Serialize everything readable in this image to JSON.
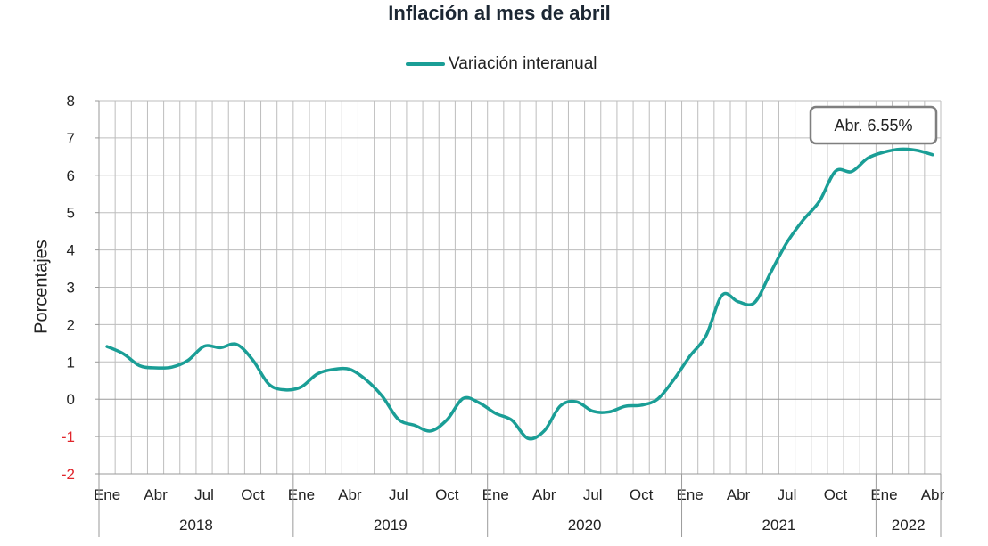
{
  "chart_data": {
    "type": "line",
    "title": "Inflación al mes de abril",
    "ylabel": "Porcentajes",
    "xlabel": "",
    "ylim": [
      -2,
      8
    ],
    "yticks": [
      -2,
      -1,
      0,
      1,
      2,
      3,
      4,
      5,
      6,
      7,
      8
    ],
    "grid": true,
    "legend_position": "top-center",
    "month_labels": [
      "Ene",
      "Abr",
      "Jul",
      "Oct"
    ],
    "years": [
      "2018",
      "2019",
      "2020",
      "2021",
      "2022"
    ],
    "series": [
      {
        "name": "Variación interanual",
        "color": "#1a9e96",
        "x": [
          "2018-01",
          "2018-02",
          "2018-03",
          "2018-04",
          "2018-05",
          "2018-06",
          "2018-07",
          "2018-08",
          "2018-09",
          "2018-10",
          "2018-11",
          "2018-12",
          "2019-01",
          "2019-02",
          "2019-03",
          "2019-04",
          "2019-05",
          "2019-06",
          "2019-07",
          "2019-08",
          "2019-09",
          "2019-10",
          "2019-11",
          "2019-12",
          "2020-01",
          "2020-02",
          "2020-03",
          "2020-04",
          "2020-05",
          "2020-06",
          "2020-07",
          "2020-08",
          "2020-09",
          "2020-10",
          "2020-11",
          "2020-12",
          "2021-01",
          "2021-02",
          "2021-03",
          "2021-04",
          "2021-05",
          "2021-06",
          "2021-07",
          "2021-08",
          "2021-09",
          "2021-10",
          "2021-11",
          "2021-12",
          "2022-01",
          "2022-02",
          "2022-03",
          "2022-04"
        ],
        "values": [
          1.41,
          1.22,
          0.9,
          0.84,
          0.86,
          1.04,
          1.42,
          1.38,
          1.47,
          1.05,
          0.4,
          0.25,
          0.33,
          0.68,
          0.8,
          0.8,
          0.52,
          0.08,
          -0.54,
          -0.7,
          -0.85,
          -0.55,
          0.02,
          -0.1,
          -0.38,
          -0.56,
          -1.05,
          -0.85,
          -0.18,
          -0.07,
          -0.32,
          -0.34,
          -0.19,
          -0.16,
          0.0,
          0.52,
          1.15,
          1.7,
          2.79,
          2.61,
          2.59,
          3.4,
          4.2,
          4.8,
          5.3,
          6.11,
          6.1,
          6.46,
          6.62,
          6.7,
          6.67,
          6.55
        ]
      }
    ],
    "annotation": "Abr. 6.55%",
    "colors": {
      "positive_ticks": "#222222",
      "negative_ticks": "#e0262c",
      "grid": "#bdbdbd",
      "callout_border": "#7f7f7f"
    }
  }
}
